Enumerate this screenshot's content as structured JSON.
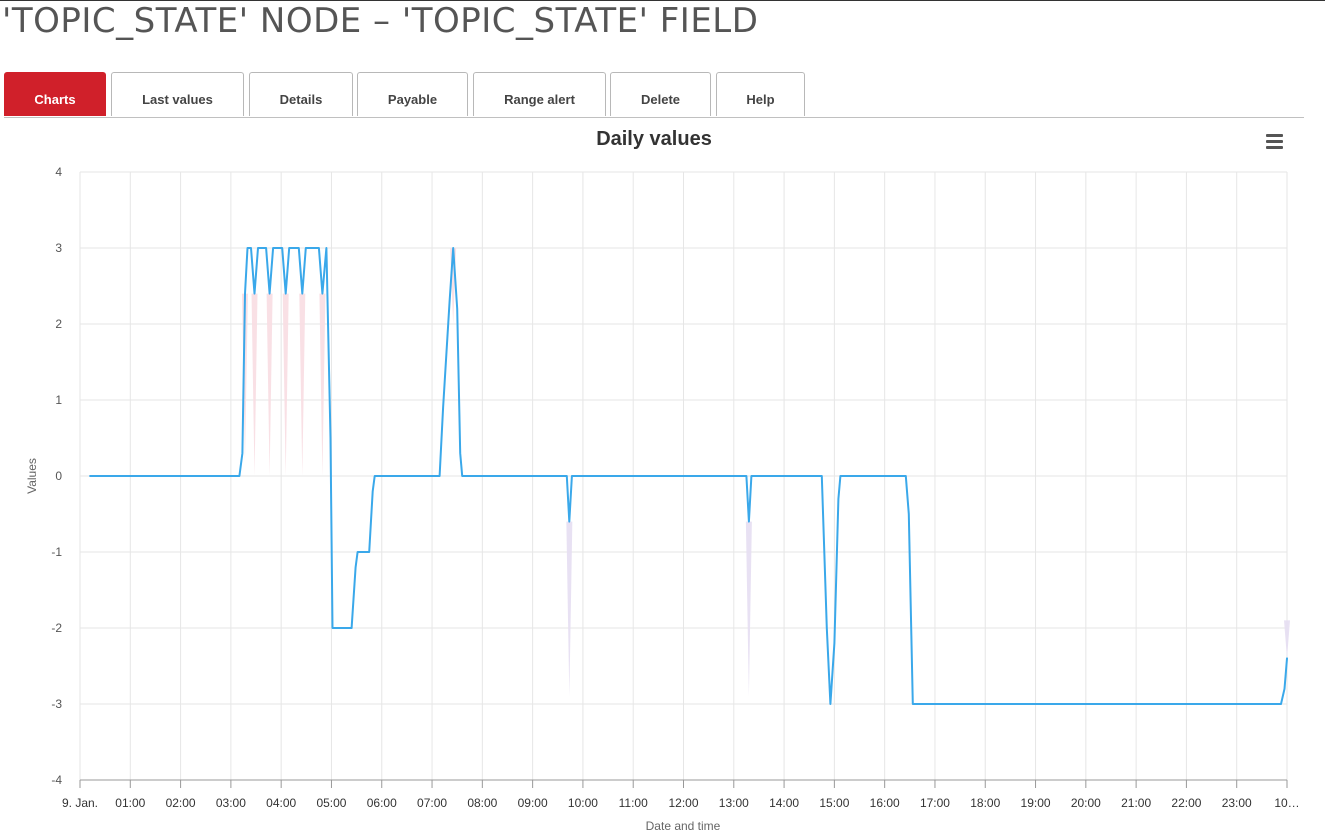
{
  "page": {
    "title": "'TOPIC_STATE' NODE – 'TOPIC_STATE' FIELD"
  },
  "tabs": [
    {
      "label": "Charts",
      "active": true
    },
    {
      "label": "Last values",
      "active": false
    },
    {
      "label": "Details",
      "active": false
    },
    {
      "label": "Payable",
      "active": false
    },
    {
      "label": "Range alert",
      "active": false
    },
    {
      "label": "Delete",
      "active": false
    },
    {
      "label": "Help",
      "active": false
    }
  ],
  "colors": {
    "accent": "#d0202a",
    "series": "#3aa8ea",
    "band_high": "#f8dde2",
    "band_low": "#e6def2"
  },
  "chart_menu": {
    "icon": "hamburger-menu-icon"
  },
  "chart_data": {
    "type": "line",
    "title": "Daily values",
    "xlabel": "Date and time",
    "ylabel": "Values",
    "ylim": [
      -4,
      4
    ],
    "yticks": [
      4,
      3,
      2,
      1,
      0,
      -1,
      -2,
      -3,
      -4
    ],
    "xlim": [
      0,
      24
    ],
    "xticks": [
      {
        "x": 0,
        "label": "9. Jan."
      },
      {
        "x": 1,
        "label": "01:00"
      },
      {
        "x": 2,
        "label": "02:00"
      },
      {
        "x": 3,
        "label": "03:00"
      },
      {
        "x": 4,
        "label": "04:00"
      },
      {
        "x": 5,
        "label": "05:00"
      },
      {
        "x": 6,
        "label": "06:00"
      },
      {
        "x": 7,
        "label": "07:00"
      },
      {
        "x": 8,
        "label": "08:00"
      },
      {
        "x": 9,
        "label": "09:00"
      },
      {
        "x": 10,
        "label": "10:00"
      },
      {
        "x": 11,
        "label": "11:00"
      },
      {
        "x": 12,
        "label": "12:00"
      },
      {
        "x": 13,
        "label": "13:00"
      },
      {
        "x": 14,
        "label": "14:00"
      },
      {
        "x": 15,
        "label": "15:00"
      },
      {
        "x": 16,
        "label": "16:00"
      },
      {
        "x": 17,
        "label": "17:00"
      },
      {
        "x": 18,
        "label": "18:00"
      },
      {
        "x": 19,
        "label": "19:00"
      },
      {
        "x": 20,
        "label": "20:00"
      },
      {
        "x": 21,
        "label": "21:00"
      },
      {
        "x": 22,
        "label": "22:00"
      },
      {
        "x": 23,
        "label": "23:00"
      },
      {
        "x": 24,
        "label": "10…"
      }
    ],
    "grid": true,
    "series": [
      {
        "points": [
          [
            0.2,
            0
          ],
          [
            3.17,
            0
          ],
          [
            3.23,
            0.3
          ],
          [
            3.28,
            2.4
          ],
          [
            3.33,
            3.0
          ],
          [
            3.4,
            3.0
          ],
          [
            3.47,
            2.4
          ],
          [
            3.54,
            3.0
          ],
          [
            3.7,
            3.0
          ],
          [
            3.77,
            2.4
          ],
          [
            3.84,
            3.0
          ],
          [
            4.02,
            3.0
          ],
          [
            4.09,
            2.4
          ],
          [
            4.16,
            3.0
          ],
          [
            4.35,
            3.0
          ],
          [
            4.42,
            2.4
          ],
          [
            4.49,
            3.0
          ],
          [
            4.75,
            3.0
          ],
          [
            4.82,
            2.4
          ],
          [
            4.9,
            3.0
          ],
          [
            4.98,
            0.5
          ],
          [
            5.02,
            -2.0
          ],
          [
            5.4,
            -2.0
          ],
          [
            5.48,
            -1.2
          ],
          [
            5.52,
            -1.0
          ],
          [
            5.75,
            -1.0
          ],
          [
            5.82,
            -0.2
          ],
          [
            5.86,
            0
          ],
          [
            7.15,
            0
          ],
          [
            7.22,
            0.9
          ],
          [
            7.35,
            2.3
          ],
          [
            7.42,
            3.0
          ],
          [
            7.5,
            2.2
          ],
          [
            7.56,
            0.3
          ],
          [
            7.6,
            0
          ],
          [
            9.68,
            0
          ],
          [
            9.73,
            -0.6
          ],
          [
            9.78,
            0
          ],
          [
            13.25,
            0
          ],
          [
            13.3,
            -0.6
          ],
          [
            13.35,
            0
          ],
          [
            14.75,
            0
          ],
          [
            14.85,
            -2.0
          ],
          [
            14.92,
            -3.0
          ],
          [
            15.0,
            -2.2
          ],
          [
            15.08,
            -0.3
          ],
          [
            15.12,
            0
          ],
          [
            16.42,
            0
          ],
          [
            16.48,
            -0.5
          ],
          [
            16.56,
            -3.0
          ],
          [
            23.88,
            -3.0
          ],
          [
            23.95,
            -2.8
          ],
          [
            24.0,
            -2.4
          ]
        ]
      }
    ],
    "bands": [
      {
        "x": 3.28,
        "ymin": 0.2,
        "ymax": 2.4,
        "tone": "high"
      },
      {
        "x": 3.47,
        "ymin": 0.0,
        "ymax": 2.4,
        "tone": "high"
      },
      {
        "x": 3.77,
        "ymin": 0.0,
        "ymax": 2.4,
        "tone": "high"
      },
      {
        "x": 4.09,
        "ymin": 0.0,
        "ymax": 2.4,
        "tone": "high"
      },
      {
        "x": 4.42,
        "ymin": 0.0,
        "ymax": 2.4,
        "tone": "high"
      },
      {
        "x": 4.82,
        "ymin": 0.0,
        "ymax": 2.4,
        "tone": "high"
      },
      {
        "x": 7.42,
        "ymin": 2.0,
        "ymax": 3.0,
        "tone": "high"
      },
      {
        "x": 9.73,
        "ymin": -2.9,
        "ymax": -0.6,
        "tone": "low"
      },
      {
        "x": 13.3,
        "ymin": -2.9,
        "ymax": -0.6,
        "tone": "low"
      },
      {
        "x": 24.0,
        "ymin": -2.4,
        "ymax": -1.9,
        "tone": "low"
      }
    ]
  }
}
